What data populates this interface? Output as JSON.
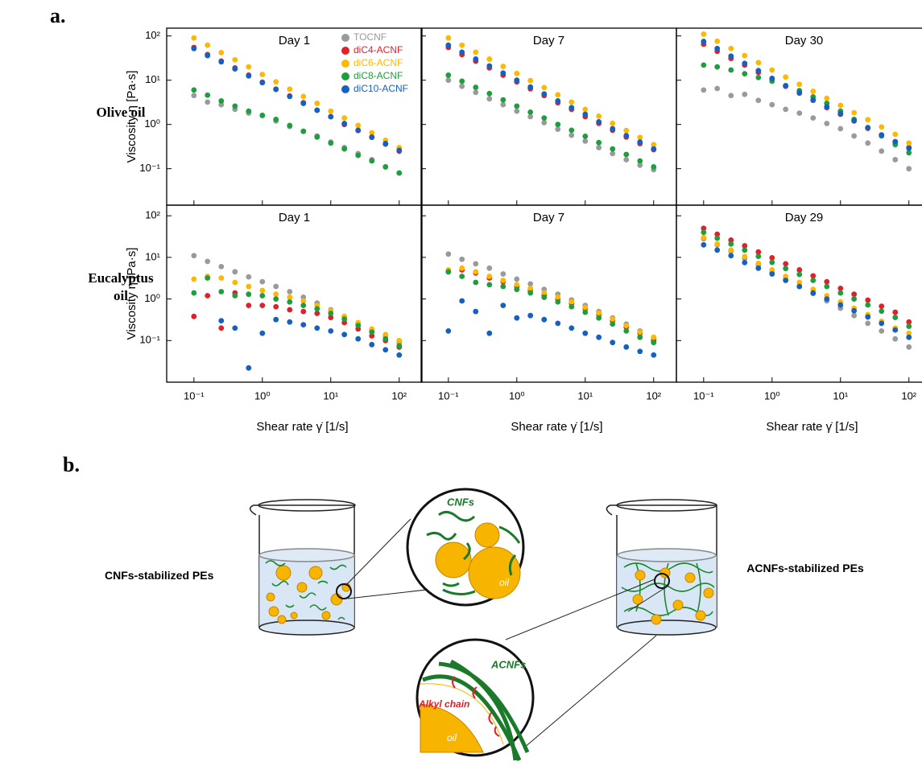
{
  "panel_labels": [
    "a.",
    "b."
  ],
  "row_labels": [
    "Olive oil",
    "Eucalyptus oil"
  ],
  "chart_data": [
    {
      "type": "scatter",
      "title": "Day 1",
      "ylabel": "Viscosity η [Pa·s]",
      "log_x": true,
      "log_y": true,
      "legend": "upper right",
      "xlim": [
        0.04,
        215
      ],
      "ylim": [
        0.015,
        150
      ],
      "xticks": [
        0.1,
        1,
        10,
        100
      ],
      "yticks": [
        {
          "value": 0.1,
          "label": "10⁻¹"
        },
        {
          "value": 1,
          "label": "10⁰"
        },
        {
          "value": 10,
          "label": "10¹"
        },
        {
          "value": 100,
          "label": "10²"
        }
      ],
      "x": [
        0.1,
        0.158,
        0.251,
        0.398,
        0.631,
        1,
        1.58,
        2.51,
        3.98,
        6.31,
        10,
        15.8,
        25.1,
        39.8,
        63.1,
        100
      ],
      "series": [
        {
          "name": "TOCNF",
          "color": "#9a9a9a",
          "values": [
            4.5,
            3.2,
            2.8,
            2.2,
            1.8,
            1.6,
            1.2,
            0.9,
            0.7,
            0.55,
            0.4,
            0.3,
            0.22,
            0.16,
            0.11,
            0.08
          ]
        },
        {
          "name": "diC4-ACNF",
          "color": "#e0202a",
          "values": [
            55,
            38,
            27,
            19,
            13,
            9,
            6.3,
            4.4,
            3.1,
            2.1,
            1.5,
            1,
            0.73,
            0.51,
            0.36,
            0.25
          ]
        },
        {
          "name": "diC6-ACNF",
          "color": "#ffb800",
          "values": [
            90,
            62,
            42,
            29,
            20,
            13.5,
            9.2,
            6.3,
            4.3,
            3,
            2,
            1.4,
            0.95,
            0.65,
            0.44,
            0.3
          ]
        },
        {
          "name": "diC8-ACNF",
          "color": "#1f9e3f",
          "values": [
            6,
            4.6,
            3.4,
            2.6,
            2,
            1.6,
            1.3,
            0.95,
            0.7,
            0.52,
            0.38,
            0.28,
            0.2,
            0.15,
            0.11,
            0.08
          ]
        },
        {
          "name": "diC10-ACNF",
          "color": "#1560c0",
          "values": [
            52,
            36,
            26,
            18,
            12.5,
            8.8,
            6.2,
            4.3,
            3,
            2.1,
            1.5,
            1.05,
            0.74,
            0.52,
            0.37,
            0.26
          ]
        }
      ]
    },
    {
      "type": "scatter",
      "title": "Day 7",
      "log_x": true,
      "log_y": true,
      "xlim": [
        0.04,
        215
      ],
      "ylim": [
        0.015,
        150
      ],
      "xticks": [
        0.1,
        1,
        10,
        100
      ],
      "yticks": [
        0.1,
        1,
        10,
        100
      ],
      "x": [
        0.1,
        0.158,
        0.251,
        0.398,
        0.631,
        1,
        1.58,
        2.51,
        3.98,
        6.31,
        10,
        15.8,
        25.1,
        39.8,
        63.1,
        100
      ],
      "series": [
        {
          "color": "#9a9a9a",
          "values": [
            10,
            7.3,
            5.3,
            3.8,
            2.8,
            2,
            1.5,
            1.1,
            0.78,
            0.57,
            0.42,
            0.3,
            0.22,
            0.16,
            0.12,
            0.095
          ]
        },
        {
          "color": "#e0202a",
          "values": [
            55,
            38,
            27,
            19,
            13,
            9.2,
            6.4,
            4.5,
            3.1,
            2.2,
            1.5,
            1.06,
            0.74,
            0.52,
            0.37,
            0.27
          ]
        },
        {
          "color": "#ffb800",
          "values": [
            90,
            62,
            43,
            30,
            20.5,
            14.2,
            9.8,
            6.8,
            4.7,
            3.2,
            2.2,
            1.54,
            1.06,
            0.73,
            0.51,
            0.35
          ]
        },
        {
          "color": "#1f9e3f",
          "values": [
            13,
            9.5,
            6.9,
            5,
            3.6,
            2.6,
            1.9,
            1.4,
            1,
            0.74,
            0.54,
            0.39,
            0.28,
            0.21,
            0.15,
            0.11
          ]
        },
        {
          "color": "#1560c0",
          "values": [
            62,
            43,
            30,
            21,
            14.5,
            10,
            7,
            4.9,
            3.4,
            2.4,
            1.7,
            1.15,
            0.8,
            0.56,
            0.4,
            0.28
          ]
        }
      ]
    },
    {
      "type": "scatter",
      "title": "Day 30",
      "log_x": true,
      "log_y": true,
      "xlim": [
        0.04,
        215
      ],
      "ylim": [
        0.015,
        150
      ],
      "xticks": [
        0.1,
        1,
        10,
        100
      ],
      "yticks": [
        0.1,
        1,
        10,
        100
      ],
      "x": [
        0.1,
        0.158,
        0.251,
        0.398,
        0.631,
        1,
        1.58,
        2.51,
        3.98,
        6.31,
        10,
        15.8,
        25.1,
        39.8,
        63.1,
        100
      ],
      "series": [
        {
          "color": "#9a9a9a",
          "values": [
            6,
            6.5,
            4.5,
            4.8,
            3.5,
            2.8,
            2.2,
            1.8,
            1.4,
            1.05,
            0.8,
            0.55,
            0.38,
            0.25,
            0.16,
            0.1
          ]
        },
        {
          "color": "#e0202a",
          "values": [
            65,
            45,
            31,
            22,
            15,
            10.5,
            7.3,
            5.1,
            3.5,
            2.4,
            1.7,
            1.2,
            0.82,
            0.57,
            0.4,
            0.3
          ]
        },
        {
          "color": "#ffb800",
          "values": [
            110,
            76,
            52,
            36,
            25,
            17,
            11.8,
            8.1,
            5.6,
            3.9,
            2.7,
            1.85,
            1.28,
            0.88,
            0.6,
            0.38
          ]
        },
        {
          "color": "#1f9e3f",
          "values": [
            22,
            20,
            17,
            14,
            11.5,
            9.5,
            7.5,
            5.8,
            4.2,
            3,
            2,
            1.3,
            0.85,
            0.55,
            0.35,
            0.23
          ]
        },
        {
          "color": "#1560c0",
          "values": [
            75,
            52,
            35,
            24,
            16.5,
            11,
            7.5,
            5.2,
            3.6,
            2.5,
            1.75,
            1.22,
            0.84,
            0.58,
            0.41,
            0.29
          ]
        }
      ]
    },
    {
      "type": "scatter",
      "title": "Day 1",
      "ylabel": "Viscosity η [Pa·s]",
      "xlabel": "Shear rate γ̇ [1/s]",
      "log_x": true,
      "log_y": true,
      "xlim": [
        0.04,
        215
      ],
      "ylim": [
        0.01,
        180
      ],
      "xticks": [
        {
          "value": 0.1,
          "label": "10⁻¹"
        },
        {
          "value": 1,
          "label": "10⁰"
        },
        {
          "value": 10,
          "label": "10¹"
        },
        {
          "value": 100,
          "label": "10²"
        }
      ],
      "yticks": [
        {
          "value": 0.1,
          "label": "10⁻¹"
        },
        {
          "value": 1,
          "label": "10⁰"
        },
        {
          "value": 10,
          "label": "10¹"
        },
        {
          "value": 100,
          "label": "10²"
        }
      ],
      "x": [
        0.1,
        0.158,
        0.251,
        0.398,
        0.631,
        1,
        1.58,
        2.51,
        3.98,
        6.31,
        10,
        15.8,
        25.1,
        39.8,
        63.1,
        100
      ],
      "series": [
        {
          "color": "#9a9a9a",
          "values": [
            11,
            8,
            6,
            4.5,
            3.4,
            2.6,
            2,
            1.5,
            1.1,
            0.8,
            0.55,
            0.38,
            0.26,
            0.18,
            0.13,
            0.09
          ]
        },
        {
          "color": "#e0202a",
          "values": [
            0.38,
            1.2,
            0.2,
            1.4,
            0.7,
            0.7,
            0.65,
            0.55,
            0.5,
            0.45,
            0.36,
            0.27,
            0.19,
            0.13,
            0.1,
            0.07
          ]
        },
        {
          "color": "#ffb800",
          "values": [
            3,
            3.5,
            3.2,
            2.5,
            2,
            1.6,
            1.3,
            1.1,
            0.9,
            0.7,
            0.52,
            0.38,
            0.27,
            0.19,
            0.14,
            0.1
          ]
        },
        {
          "color": "#1f9e3f",
          "values": [
            1.4,
            3.2,
            1.5,
            1.2,
            1.3,
            1.2,
            1,
            0.85,
            0.7,
            0.58,
            0.45,
            0.33,
            0.23,
            0.16,
            0.11,
            0.075
          ]
        },
        {
          "color": "#1560c0",
          "values": [
            null,
            null,
            0.3,
            0.2,
            0.022,
            0.15,
            0.32,
            0.28,
            0.24,
            0.2,
            0.17,
            0.14,
            0.11,
            0.08,
            0.06,
            0.045
          ]
        }
      ]
    },
    {
      "type": "scatter",
      "title": "Day 7",
      "xlabel": "Shear rate γ̇ [1/s]",
      "log_x": true,
      "log_y": true,
      "xlim": [
        0.04,
        215
      ],
      "ylim": [
        0.01,
        180
      ],
      "xticks": [
        {
          "value": 0.1,
          "label": "10⁻¹"
        },
        {
          "value": 1,
          "label": "10⁰"
        },
        {
          "value": 10,
          "label": "10¹"
        },
        {
          "value": 100,
          "label": "10²"
        }
      ],
      "yticks": [
        0.1,
        1,
        10,
        100
      ],
      "x": [
        0.1,
        0.158,
        0.251,
        0.398,
        0.631,
        1,
        1.58,
        2.51,
        3.98,
        6.31,
        10,
        15.8,
        25.1,
        39.8,
        63.1,
        100
      ],
      "series": [
        {
          "color": "#9a9a9a",
          "values": [
            12,
            9,
            7,
            5.5,
            4,
            3,
            2.3,
            1.7,
            1.3,
            0.95,
            0.7,
            0.5,
            0.35,
            0.25,
            0.17,
            0.11
          ]
        },
        {
          "color": "#e0202a",
          "values": [
            4.5,
            5,
            4.2,
            3.2,
            2.6,
            2,
            1.6,
            1.25,
            1,
            0.78,
            0.58,
            0.42,
            0.3,
            0.21,
            0.15,
            0.1
          ]
        },
        {
          "color": "#ffb800",
          "values": [
            5,
            5.5,
            4.5,
            3.5,
            2.8,
            2.2,
            1.8,
            1.4,
            1.1,
            0.85,
            0.63,
            0.46,
            0.33,
            0.23,
            0.16,
            0.12
          ]
        },
        {
          "color": "#1f9e3f",
          "values": [
            4.5,
            3.5,
            2.5,
            2.2,
            2,
            1.7,
            1.4,
            1.1,
            0.85,
            0.65,
            0.48,
            0.35,
            0.25,
            0.17,
            0.12,
            0.09
          ]
        },
        {
          "color": "#1560c0",
          "values": [
            0.17,
            0.9,
            0.5,
            0.15,
            0.7,
            0.35,
            0.4,
            0.32,
            0.26,
            0.2,
            0.15,
            0.12,
            0.09,
            0.07,
            0.055,
            0.045
          ]
        }
      ]
    },
    {
      "type": "scatter",
      "title": "Day 29",
      "xlabel": "Shear rate γ̇ [1/s]",
      "log_x": true,
      "log_y": true,
      "xlim": [
        0.04,
        215
      ],
      "ylim": [
        0.01,
        180
      ],
      "xticks": [
        {
          "value": 0.1,
          "label": "10⁻¹"
        },
        {
          "value": 1,
          "label": "10⁰"
        },
        {
          "value": 10,
          "label": "10¹"
        },
        {
          "value": 100,
          "label": "10²"
        }
      ],
      "yticks": [
        0.1,
        1,
        10,
        100
      ],
      "x": [
        0.1,
        0.158,
        0.251,
        0.398,
        0.631,
        1,
        1.58,
        2.51,
        3.98,
        6.31,
        10,
        15.8,
        25.1,
        39.8,
        63.1,
        100
      ],
      "series": [
        {
          "color": "#9a9a9a",
          "values": [
            28,
            20,
            14,
            9.5,
            6.5,
            4.4,
            3,
            2,
            1.35,
            0.9,
            0.6,
            0.4,
            0.26,
            0.17,
            0.11,
            0.07
          ]
        },
        {
          "color": "#e0202a",
          "values": [
            50,
            36,
            26,
            19,
            13.5,
            9.8,
            7,
            5,
            3.6,
            2.6,
            1.8,
            1.3,
            0.94,
            0.67,
            0.48,
            0.28
          ]
        },
        {
          "color": "#ffb800",
          "values": [
            30,
            21,
            15,
            10.5,
            7.2,
            5,
            3.5,
            2.5,
            1.7,
            1.2,
            0.85,
            0.6,
            0.42,
            0.29,
            0.2,
            0.15
          ]
        },
        {
          "color": "#1f9e3f",
          "values": [
            40,
            29,
            21,
            15,
            10.6,
            7.6,
            5.4,
            3.9,
            2.8,
            2,
            1.4,
            1,
            0.72,
            0.51,
            0.36,
            0.22
          ]
        },
        {
          "color": "#1560c0",
          "values": [
            20,
            15,
            11,
            7.5,
            5.5,
            4,
            2.8,
            2,
            1.4,
            1,
            0.72,
            0.52,
            0.37,
            0.26,
            0.18,
            0.12
          ]
        }
      ]
    }
  ],
  "diagram": {
    "left_label": "CNFs-stabilized PEs",
    "right_label": "ACNFs-stabilized PEs",
    "top_zoom": {
      "fiber_label": "CNFs",
      "oil_label": "oil"
    },
    "bottom_zoom": {
      "fiber_label": "ACNFs",
      "chain_label": "Alkyl chain",
      "oil_label": "oil"
    }
  }
}
